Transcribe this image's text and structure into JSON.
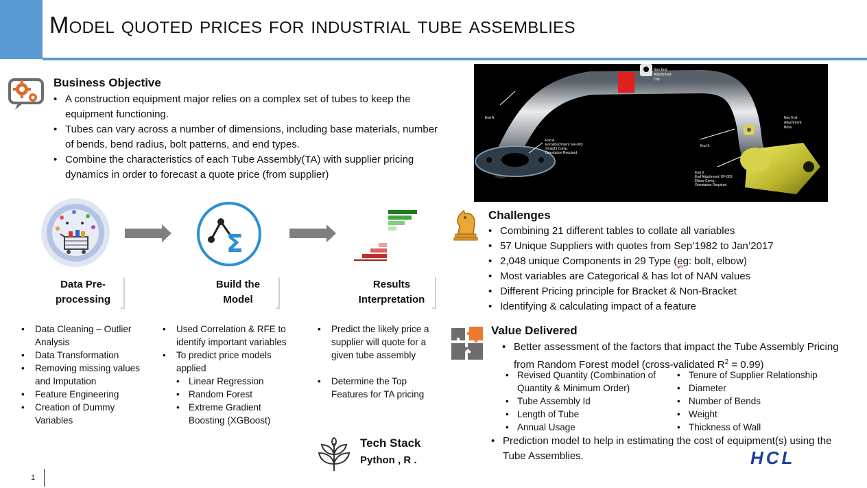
{
  "title": "Model quoted prices for industrial tube assemblies",
  "business": {
    "heading": "Business Objective",
    "bullets": [
      "A construction equipment  major relies on a complex set of tubes to keep the equipment functioning.",
      "Tubes can vary across a number of dimensions, including base materials, number of bends, bend radius, bolt patterns, and end types.",
      "Combine the characteristics of each Tube Assembly(TA) with supplier pricing dynamics in order to forecast a quote price (from supplier)"
    ]
  },
  "tube_image": {
    "labels": {
      "non_end_clip": "Non End Attachment: Clip",
      "non_end_boss": "Non End Attachment: Boss",
      "end_a": "End A",
      "end_a_detail": "End A End Attachment: EF-003 Straight Comp. Orientation Required",
      "end_x": "End X",
      "end_x_detail": "End X End Attachment: EF-003 Elbow Comp. Orientation Required"
    }
  },
  "steps": [
    {
      "label_line1": "Data Pre-",
      "label_line2": "processing",
      "bullets": [
        "Data Cleaning – Outlier Analysis",
        "Data Transformation",
        "Removing missing values and Imputation",
        "Feature Engineering",
        "Creation of Dummy Variables"
      ]
    },
    {
      "label_line1": "Build the",
      "label_line2": "Model",
      "bullets": [
        "Used Correlation & RFE to identify important variables",
        "To predict price models applied"
      ],
      "sub_bullets": [
        "Linear Regression",
        "Random Forest",
        "Extreme Gradient Boosting (XGBoost)"
      ]
    },
    {
      "label_line1": "Results",
      "label_line2": "Interpretation",
      "bullets": [
        "Predict the likely price a supplier will quote for a given tube assembly",
        "Determine the Top Features for TA pricing"
      ]
    }
  ],
  "challenges": {
    "heading": "Challenges",
    "bullets": [
      "Combining 21 different tables to collate all variables",
      "57 Unique Suppliers with quotes from Sep’1982 to Jan’2017",
      "2,048 unique Components in 29 Type (eg: bolt, elbow)",
      "Most variables are Categorical & has lot of NAN values",
      "Different Pricing principle for Bracket & Non-Bracket",
      "Identifying & calculating impact of a feature"
    ]
  },
  "value": {
    "heading": "Value Delivered",
    "bullet1": "Better assessment of the factors that impact the Tube Assembly Pricing from Random Forest model (cross-validated R",
    "bullet1_sup": "2",
    "bullet1_end": " = 0.99)",
    "features_left": [
      "Revised Quantity (Combination of Quantity & Minimum Order)",
      "Tube Assembly Id",
      "Length of Tube",
      "Annual Usage"
    ],
    "features_right": [
      "Tenure of Supplier Relationship",
      "Diameter",
      "Number of Bends",
      "Weight",
      "Thickness of Wall"
    ],
    "bullet2": "Prediction model to help in estimating the cost of equipment(s) using the Tube Assemblies."
  },
  "tech": {
    "heading": "Tech Stack",
    "value": "Python , R ."
  },
  "logo": "HCL",
  "page_number": "1"
}
